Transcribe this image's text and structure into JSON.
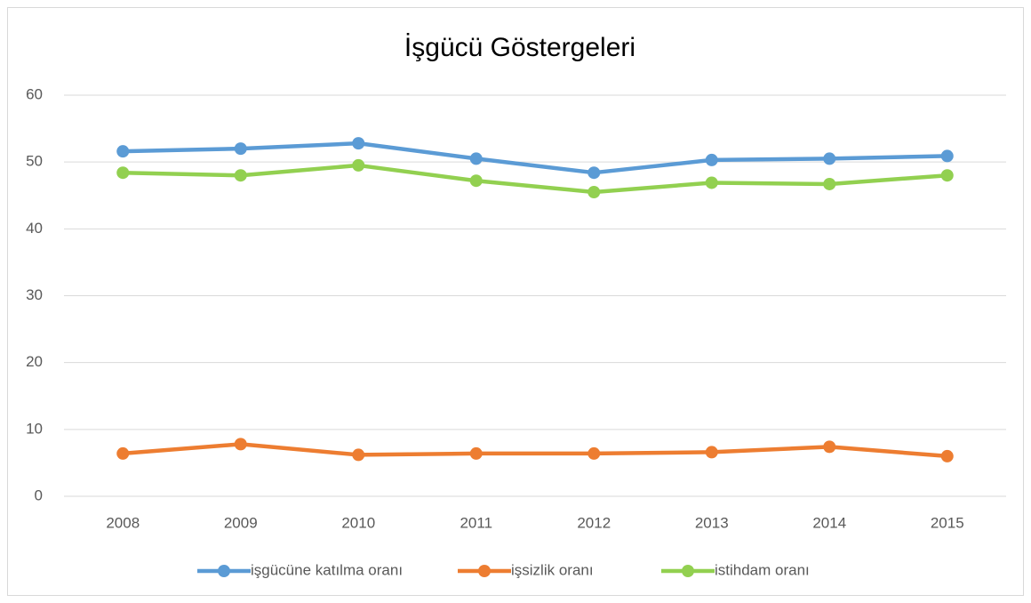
{
  "chart_data": {
    "type": "line",
    "title": "İşgücü Göstergeleri",
    "categories": [
      "2008",
      "2009",
      "2010",
      "2011",
      "2012",
      "2013",
      "2014",
      "2015"
    ],
    "series": [
      {
        "name": "işgücüne katılma oranı",
        "color": "#5b9bd5",
        "values": [
          51.6,
          52.0,
          52.8,
          50.5,
          48.4,
          50.3,
          50.5,
          50.9
        ]
      },
      {
        "name": "işsizlik oranı",
        "color": "#ed7d31",
        "values": [
          6.4,
          7.8,
          6.2,
          6.4,
          6.4,
          6.6,
          7.4,
          6.0
        ]
      },
      {
        "name": "istihdam oranı",
        "color": "#92d050",
        "values": [
          48.4,
          48.0,
          49.5,
          47.2,
          45.5,
          46.9,
          46.7,
          48.0
        ]
      }
    ],
    "ylim": [
      0,
      60
    ],
    "yticks": [
      0,
      10,
      20,
      30,
      40,
      50,
      60
    ],
    "grid": true,
    "legend": "bottom"
  }
}
